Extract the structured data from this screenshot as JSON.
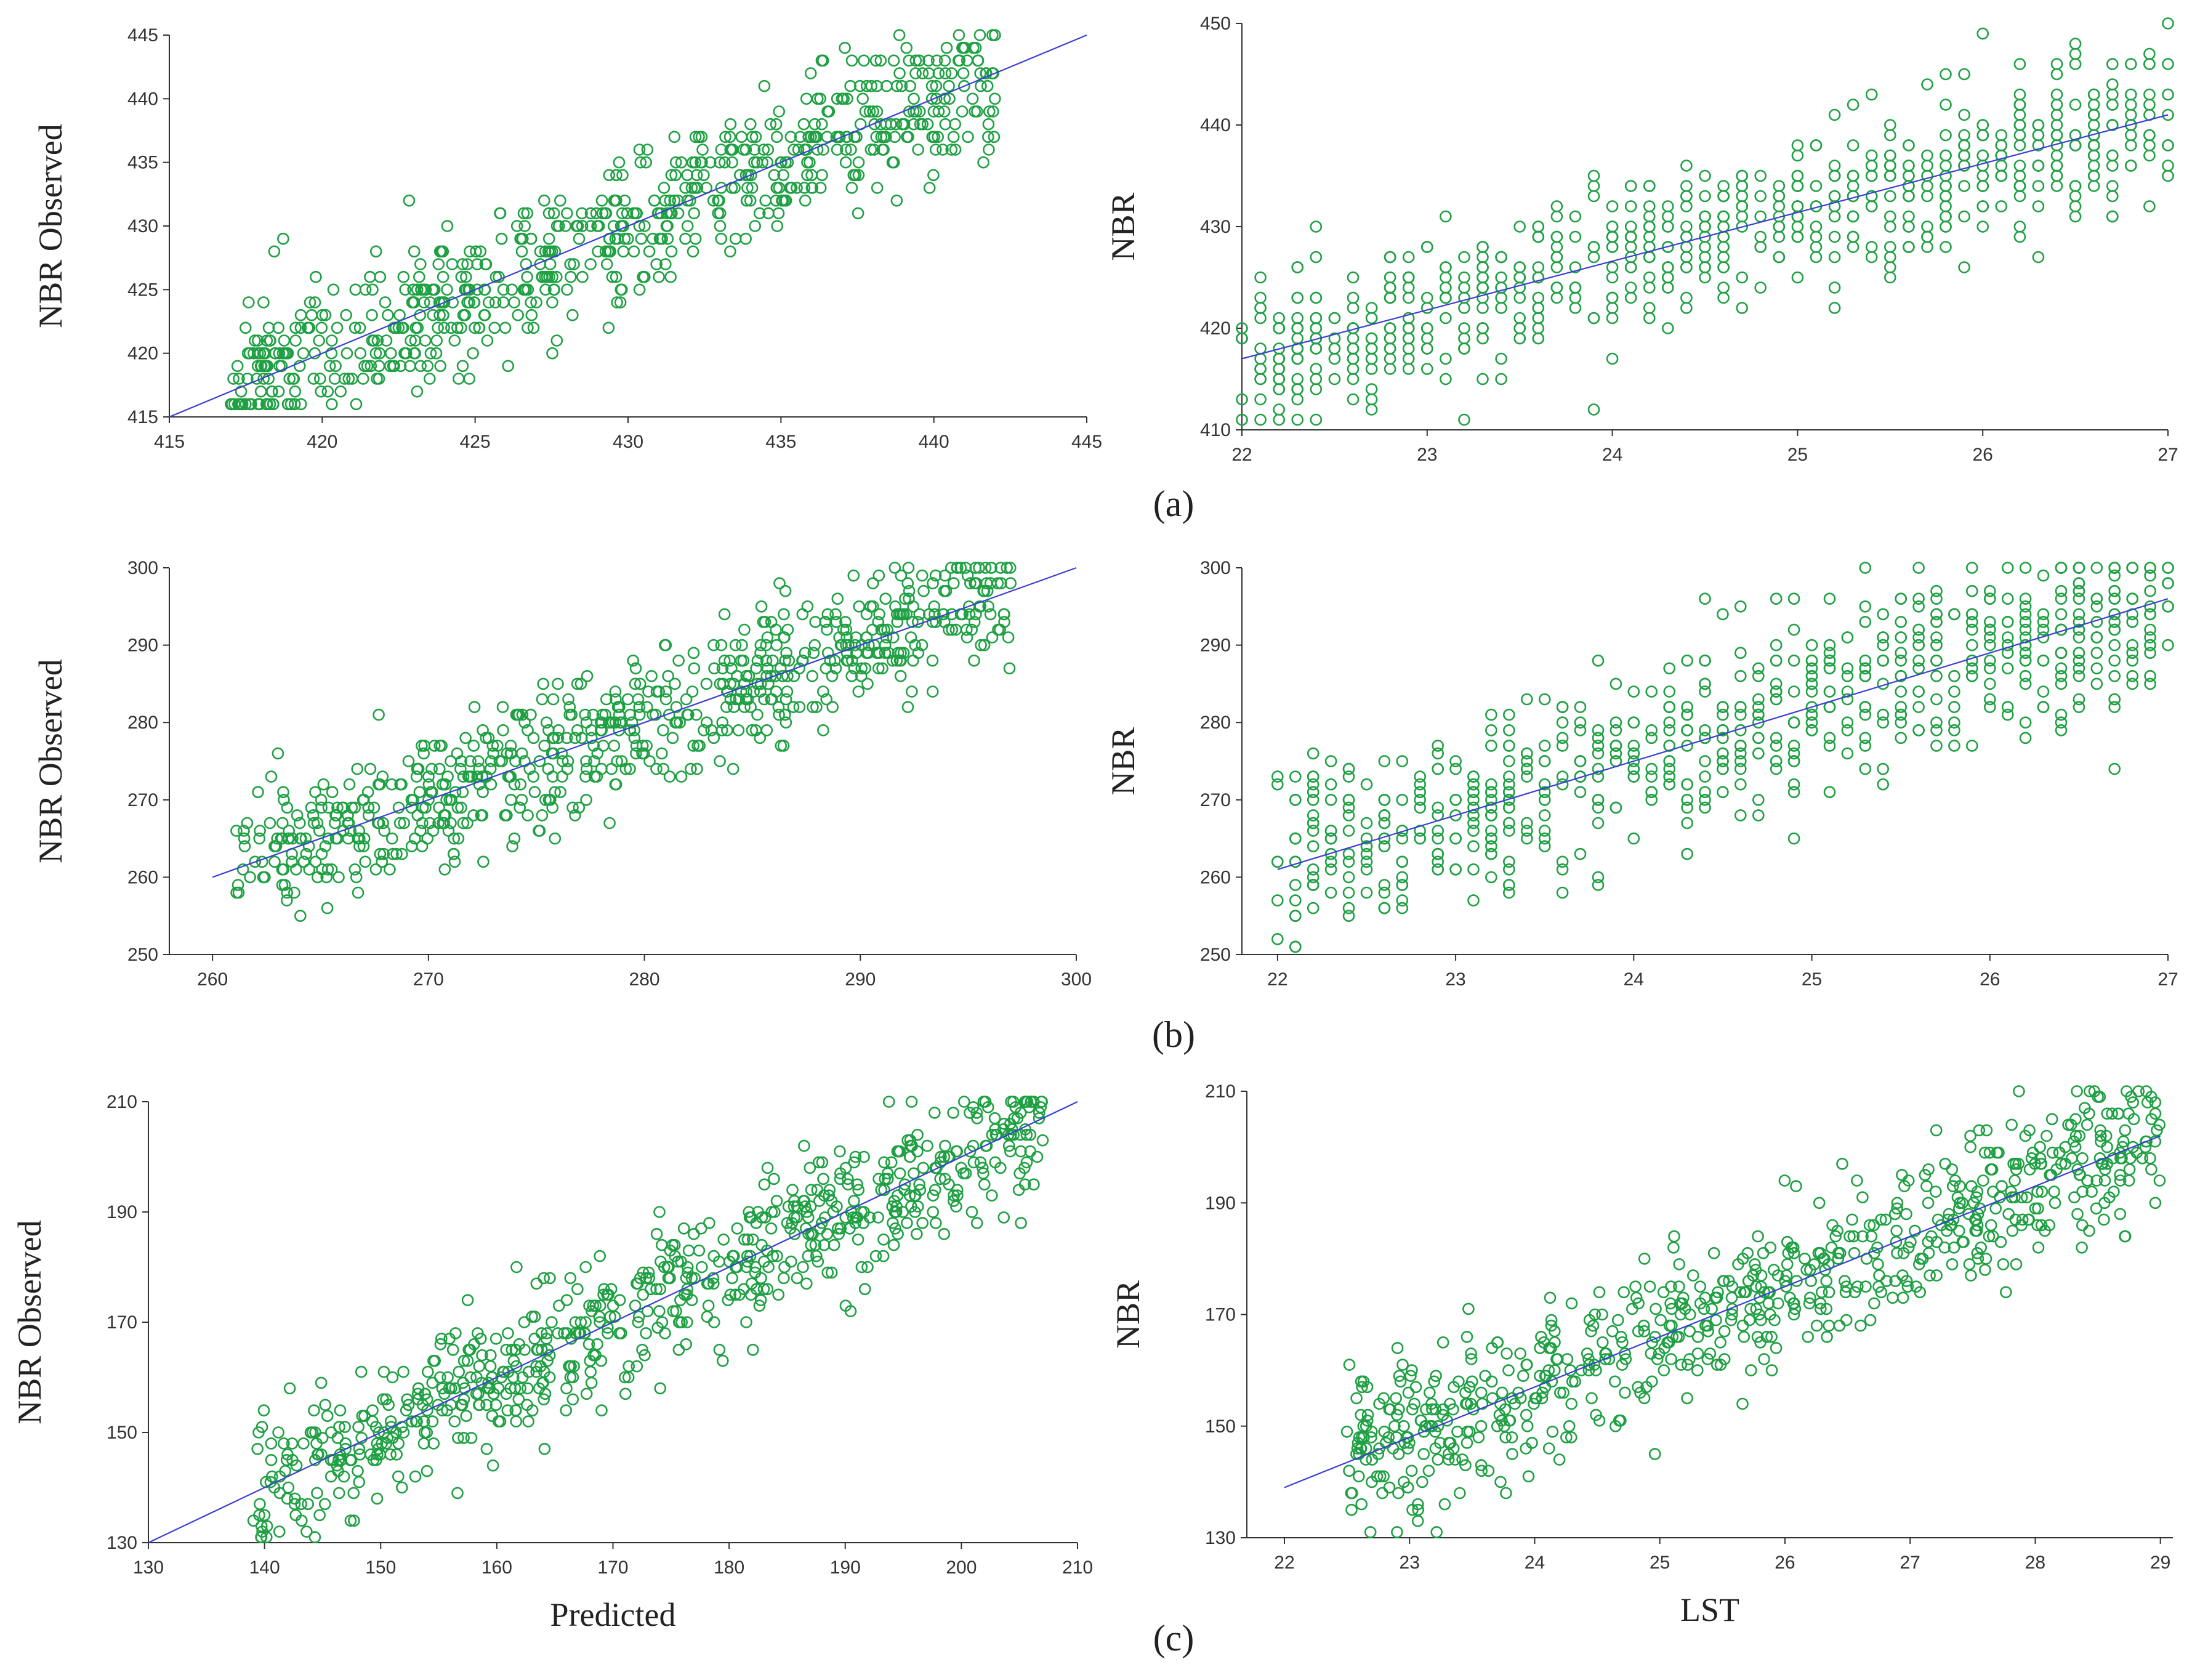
{
  "colors": {
    "points": "#1fa043",
    "fit_line": "#3b3fd0",
    "axis": "#333333"
  },
  "panel_labels": [
    "(a)",
    "(b)",
    "(c)"
  ],
  "chart_data": [
    {
      "id": "a-left",
      "type": "scatter",
      "panel": "(a)",
      "xlabel": "",
      "ylabel": "NBR Observed",
      "xlim": [
        415,
        445
      ],
      "ylim": [
        415,
        445
      ],
      "xticks": [
        415,
        420,
        425,
        430,
        435,
        440,
        445
      ],
      "yticks": [
        415,
        420,
        425,
        430,
        435,
        440,
        445
      ],
      "fit_line": [
        [
          415,
          415
        ],
        [
          445,
          445
        ]
      ],
      "cloud": {
        "n": 700,
        "x_range": [
          417,
          442
        ],
        "y_spread": 5.5,
        "seed": 11
      }
    },
    {
      "id": "a-right",
      "type": "scatter",
      "panel": "(a)",
      "xlabel": "",
      "ylabel": "NBR",
      "xlim": [
        22,
        27
      ],
      "ylim": [
        410,
        450
      ],
      "xticks": [
        22,
        23,
        24,
        25,
        26,
        27
      ],
      "yticks": [
        410,
        420,
        430,
        440,
        450
      ],
      "fit_line": [
        [
          22,
          417
        ],
        [
          27,
          441
        ]
      ],
      "cloud": {
        "n": 700,
        "x_range": [
          22,
          27
        ],
        "y_spread": 7,
        "x_step": 0.1,
        "seed": 23
      }
    },
    {
      "id": "b-left",
      "type": "scatter",
      "panel": "(b)",
      "xlabel": "",
      "ylabel": "NBR Observed",
      "xlim": [
        258,
        300
      ],
      "ylim": [
        250,
        300
      ],
      "xticks": [
        260,
        270,
        280,
        290,
        300
      ],
      "yticks": [
        250,
        260,
        270,
        280,
        290,
        300
      ],
      "fit_line": [
        [
          260,
          260
        ],
        [
          300,
          300
        ]
      ],
      "cloud": {
        "n": 700,
        "x_range": [
          261,
          297
        ],
        "y_spread": 8,
        "seed": 37
      }
    },
    {
      "id": "b-right",
      "type": "scatter",
      "panel": "(b)",
      "xlabel": "",
      "ylabel": "NBR",
      "xlim": [
        21.8,
        27
      ],
      "ylim": [
        250,
        300
      ],
      "xticks": [
        22,
        23,
        24,
        25,
        26,
        27
      ],
      "yticks": [
        250,
        260,
        270,
        280,
        290,
        300
      ],
      "fit_line": [
        [
          22,
          261
        ],
        [
          27,
          296
        ]
      ],
      "cloud": {
        "n": 700,
        "x_range": [
          22,
          27
        ],
        "y_spread": 11,
        "x_step": 0.1,
        "seed": 41
      }
    },
    {
      "id": "c-left",
      "type": "scatter",
      "panel": "(c)",
      "xlabel": "Predicted",
      "ylabel": "NBR Observed",
      "xlim": [
        130,
        210
      ],
      "ylim": [
        130,
        210
      ],
      "xticks": [
        130,
        140,
        150,
        160,
        170,
        180,
        190,
        200,
        210
      ],
      "yticks": [
        130,
        150,
        170,
        190,
        210
      ],
      "fit_line": [
        [
          130,
          130
        ],
        [
          210,
          210
        ]
      ],
      "cloud": {
        "n": 700,
        "x_range": [
          139,
          207
        ],
        "y_spread": 12,
        "seed": 53
      }
    },
    {
      "id": "c-right",
      "type": "scatter",
      "panel": "(c)",
      "xlabel": "LST",
      "ylabel": "NBR",
      "xlim": [
        21.7,
        29.1
      ],
      "ylim": [
        130,
        210
      ],
      "xticks": [
        22,
        23,
        24,
        25,
        26,
        27,
        28,
        29
      ],
      "yticks": [
        130,
        150,
        170,
        190,
        210
      ],
      "fit_line": [
        [
          22,
          139
        ],
        [
          29,
          202
        ]
      ],
      "cloud": {
        "n": 700,
        "x_range": [
          22.5,
          29
        ],
        "y_spread": 12,
        "seed": 67
      }
    }
  ]
}
